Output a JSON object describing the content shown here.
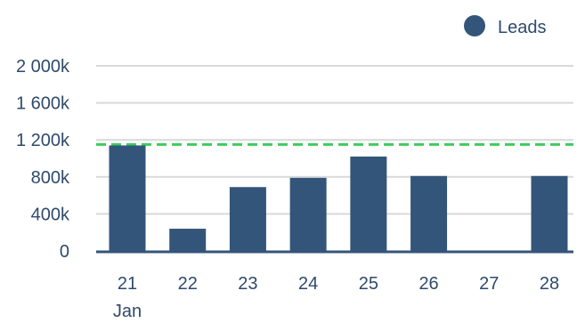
{
  "chart_data": {
    "type": "bar",
    "title": "",
    "xlabel": "",
    "ylabel": "",
    "categories": [
      "21",
      "22",
      "23",
      "24",
      "25",
      "26",
      "27",
      "28"
    ],
    "category_sublabels": [
      "Jan",
      "",
      "",
      "",
      "",
      "",
      "",
      ""
    ],
    "series": [
      {
        "name": "Leads",
        "color": "#34557a",
        "values": [
          1140,
          240,
          690,
          790,
          1020,
          810,
          0,
          810
        ]
      }
    ],
    "yticks": [
      0,
      400,
      800,
      1200,
      1600,
      2000
    ],
    "ytick_labels": [
      "0",
      "400k",
      "800k",
      "1 200k",
      "1 600k",
      "2 000k"
    ],
    "ylim": [
      0,
      2000
    ],
    "reference_line": {
      "value": 1150,
      "color": "#3dcc5a",
      "style": "dashed"
    },
    "grid": true,
    "legend": {
      "position": "top-right"
    },
    "colors": {
      "grid": "#d9d9d9",
      "axis": "#34557a",
      "text": "#2f4a6b"
    }
  }
}
